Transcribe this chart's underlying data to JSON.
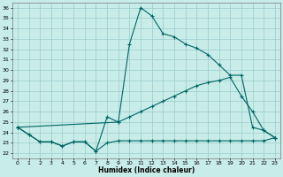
{
  "xlabel": "Humidex (Indice chaleur)",
  "bg_color": "#c8ece8",
  "grid_color": "#99cccc",
  "line_color": "#006666",
  "xlim": [
    -0.5,
    23.5
  ],
  "ylim": [
    21.5,
    36.5
  ],
  "xticks": [
    0,
    1,
    2,
    3,
    4,
    5,
    6,
    7,
    8,
    9,
    10,
    11,
    12,
    13,
    14,
    15,
    16,
    17,
    18,
    19,
    20,
    21,
    22,
    23
  ],
  "yticks": [
    22,
    23,
    24,
    25,
    26,
    27,
    28,
    29,
    30,
    31,
    32,
    33,
    34,
    35,
    36
  ],
  "curve1_x": [
    0,
    1,
    2,
    3,
    4,
    5,
    6,
    7,
    8,
    9,
    10,
    11,
    12,
    13,
    14,
    15,
    16,
    17,
    18,
    19,
    20,
    21,
    22,
    23
  ],
  "curve1_y": [
    24.5,
    23.8,
    23.1,
    23.1,
    22.7,
    23.1,
    23.1,
    22.2,
    25.5,
    25.0,
    32.5,
    36.0,
    35.2,
    33.5,
    33.2,
    32.5,
    32.1,
    31.5,
    30.5,
    29.5,
    29.5,
    24.5,
    24.2,
    23.5
  ],
  "curve2_x": [
    0,
    9,
    10,
    11,
    12,
    13,
    14,
    15,
    16,
    17,
    18,
    19,
    20,
    21,
    22,
    23
  ],
  "curve2_y": [
    24.5,
    25.0,
    25.5,
    26.0,
    26.5,
    27.0,
    27.5,
    28.0,
    28.5,
    28.8,
    29.0,
    29.3,
    27.5,
    26.0,
    24.2,
    23.5
  ],
  "curve3_x": [
    0,
    1,
    2,
    3,
    4,
    5,
    6,
    7,
    8,
    9,
    10,
    11,
    12,
    13,
    14,
    15,
    16,
    17,
    18,
    19,
    20,
    21,
    22,
    23
  ],
  "curve3_y": [
    24.5,
    23.8,
    23.1,
    23.1,
    22.7,
    23.1,
    23.1,
    22.2,
    23.0,
    23.2,
    23.2,
    23.2,
    23.2,
    23.2,
    23.2,
    23.2,
    23.2,
    23.2,
    23.2,
    23.2,
    23.2,
    23.2,
    23.2,
    23.5
  ]
}
